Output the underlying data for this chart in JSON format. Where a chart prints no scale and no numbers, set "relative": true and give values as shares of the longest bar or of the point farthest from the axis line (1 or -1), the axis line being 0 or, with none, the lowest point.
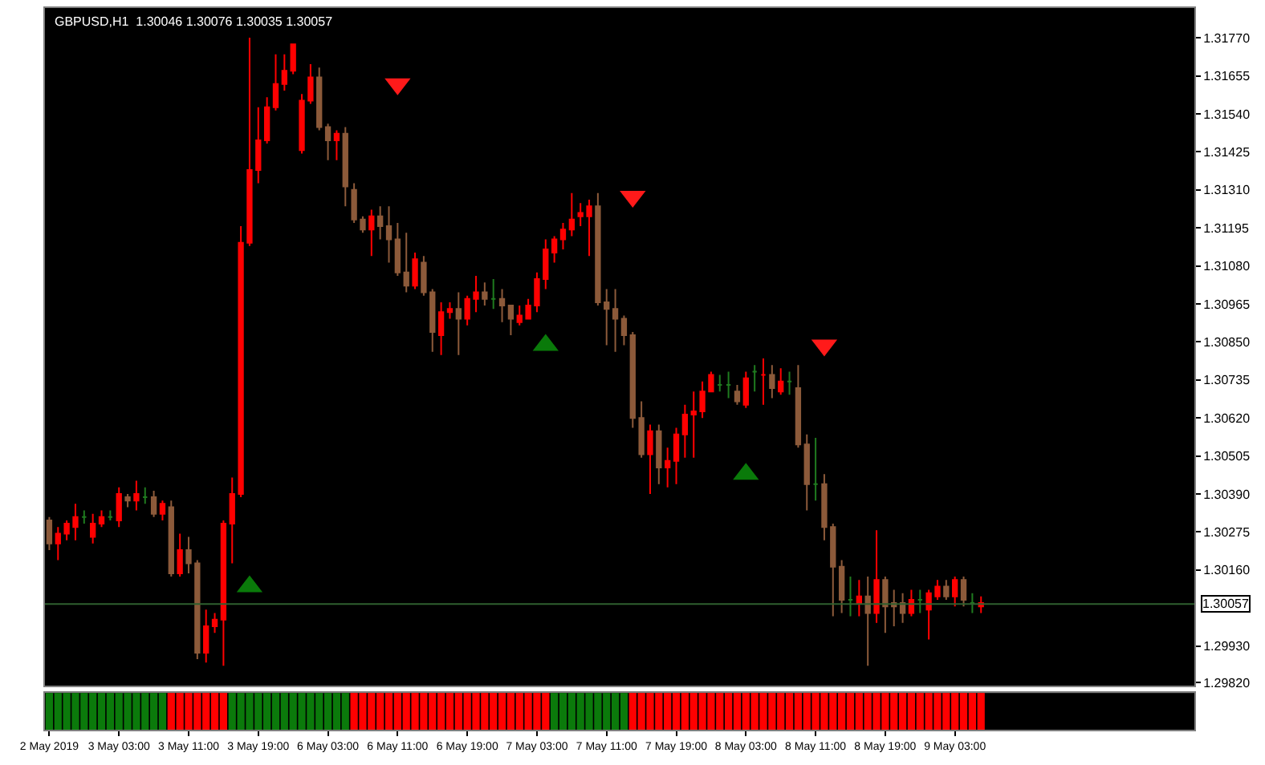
{
  "chart_data": [
    {
      "type": "candlestick",
      "title": "GBPUSD,H1  1.30046 1.30076 1.30035 1.30057",
      "categories": [
        null,
        null,
        null,
        null,
        null,
        null,
        null,
        null,
        null,
        null,
        null,
        null,
        null,
        null,
        null,
        null,
        null,
        null,
        null,
        null,
        null,
        null,
        null,
        null,
        null,
        null,
        null,
        null,
        null,
        null,
        null,
        null,
        null,
        null,
        null,
        null,
        null,
        null,
        null,
        null,
        null,
        null,
        null,
        null,
        null,
        null,
        null,
        null,
        null,
        null,
        null,
        null,
        null,
        null,
        null,
        null,
        null,
        null,
        null,
        null,
        null,
        null,
        null,
        null,
        null,
        null,
        null,
        null,
        null,
        null,
        null,
        null,
        null,
        null,
        null,
        null,
        null,
        null,
        null,
        null,
        null,
        null,
        null,
        null,
        null,
        null,
        null,
        null,
        null,
        null,
        null,
        null,
        null,
        null,
        null,
        null,
        null,
        null,
        null,
        null,
        null,
        null,
        null,
        null,
        null,
        null,
        null,
        null,
        null,
        null,
        null,
        null,
        null,
        null,
        null,
        null,
        null,
        null,
        null,
        null,
        null,
        null,
        null,
        null,
        null,
        null,
        null,
        null,
        null,
        null,
        null,
        null
      ],
      "ohlc": [
        [
          1.3031,
          1.3032,
          1.3022,
          1.3024
        ],
        [
          1.3024,
          1.3029,
          1.3019,
          1.3027
        ],
        [
          1.3027,
          1.3031,
          1.3025,
          1.303
        ],
        [
          1.3029,
          1.3036,
          1.3025,
          1.3032
        ],
        [
          1.3032,
          1.3034,
          1.303,
          1.3032
        ],
        [
          1.3026,
          1.3033,
          1.3024,
          1.303
        ],
        [
          1.303,
          1.3034,
          1.3029,
          1.3032
        ],
        [
          1.3032,
          1.3034,
          1.3031,
          1.3032
        ],
        [
          1.3031,
          1.3041,
          1.3029,
          1.3039
        ],
        [
          1.3038,
          1.3039,
          1.3035,
          1.3037
        ],
        [
          1.3037,
          1.3043,
          1.3034,
          1.3039
        ],
        [
          1.3038,
          1.3041,
          1.3036,
          1.3038
        ],
        [
          1.3038,
          1.304,
          1.3032,
          1.3033
        ],
        [
          1.3033,
          1.3037,
          1.3031,
          1.3036
        ],
        [
          1.3035,
          1.3037,
          1.3014,
          1.3015
        ],
        [
          1.3015,
          1.3027,
          1.3014,
          1.3022
        ],
        [
          1.3022,
          1.3026,
          1.3015,
          1.3018
        ],
        [
          1.3018,
          1.3019,
          1.2989,
          1.2991
        ],
        [
          1.2991,
          1.3004,
          1.2988,
          1.2999
        ],
        [
          1.2999,
          1.3003,
          1.2997,
          1.3001
        ],
        [
          1.3001,
          1.3031,
          1.2987,
          1.303
        ],
        [
          1.303,
          1.3044,
          1.3018,
          1.3039
        ],
        [
          1.3039,
          1.312,
          1.3038,
          1.3115
        ],
        [
          1.3115,
          1.3177,
          1.3114,
          1.3137
        ],
        [
          1.3137,
          1.3156,
          1.3133,
          1.3146
        ],
        [
          1.3146,
          1.3159,
          1.3145,
          1.3156
        ],
        [
          1.3156,
          1.3172,
          1.3155,
          1.3163
        ],
        [
          1.3163,
          1.3172,
          1.3161,
          1.3167
        ],
        [
          1.3167,
          1.3175,
          1.3166,
          1.3175
        ],
        [
          1.3143,
          1.316,
          1.3142,
          1.3158
        ],
        [
          1.3158,
          1.3169,
          1.3157,
          1.3165
        ],
        [
          1.3165,
          1.3168,
          1.3149,
          1.315
        ],
        [
          1.315,
          1.3151,
          1.314,
          1.3146
        ],
        [
          1.3146,
          1.3149,
          1.314,
          1.3148
        ],
        [
          1.3148,
          1.315,
          1.3126,
          1.3132
        ],
        [
          1.3131,
          1.3133,
          1.3121,
          1.3122
        ],
        [
          1.3122,
          1.3123,
          1.3118,
          1.3119
        ],
        [
          1.3119,
          1.3125,
          1.3111,
          1.3123
        ],
        [
          1.3123,
          1.3126,
          1.3116,
          1.312
        ],
        [
          1.312,
          1.3126,
          1.3109,
          1.3116
        ],
        [
          1.3116,
          1.3121,
          1.3105,
          1.3106
        ],
        [
          1.3106,
          1.3118,
          1.31,
          1.3102
        ],
        [
          1.3102,
          1.3112,
          1.3101,
          1.311
        ],
        [
          1.3109,
          1.3111,
          1.3099,
          1.31
        ],
        [
          1.31,
          1.3101,
          1.3082,
          1.3088
        ],
        [
          1.3087,
          1.3097,
          1.3081,
          1.3094
        ],
        [
          1.3094,
          1.3097,
          1.3092,
          1.3095
        ],
        [
          1.3095,
          1.31,
          1.3081,
          1.3092
        ],
        [
          1.3092,
          1.3099,
          1.309,
          1.3098
        ],
        [
          1.3098,
          1.3105,
          1.3094,
          1.31
        ],
        [
          1.31,
          1.3103,
          1.3096,
          1.3098
        ],
        [
          1.3098,
          1.3104,
          1.3095,
          1.3098
        ],
        [
          1.3098,
          1.3101,
          1.3091,
          1.3096
        ],
        [
          1.3096,
          1.3096,
          1.3087,
          1.3092
        ],
        [
          1.3091,
          1.3096,
          1.309,
          1.3093
        ],
        [
          1.3092,
          1.3098,
          1.3092,
          1.3096
        ],
        [
          1.3096,
          1.3106,
          1.3094,
          1.3104
        ],
        [
          1.3104,
          1.3116,
          1.3101,
          1.3113
        ],
        [
          1.3112,
          1.3117,
          1.3109,
          1.3116
        ],
        [
          1.3116,
          1.3121,
          1.3113,
          1.3119
        ],
        [
          1.3119,
          1.313,
          1.3117,
          1.3122
        ],
        [
          1.3123,
          1.3127,
          1.312,
          1.3124
        ],
        [
          1.3123,
          1.3128,
          1.3111,
          1.3126
        ],
        [
          1.3126,
          1.313,
          1.3096,
          1.3097
        ],
        [
          1.3097,
          1.3101,
          1.3084,
          1.3095
        ],
        [
          1.3095,
          1.3101,
          1.3082,
          1.3092
        ],
        [
          1.3092,
          1.3093,
          1.3084,
          1.3087
        ],
        [
          1.3087,
          1.3088,
          1.3059,
          1.3062
        ],
        [
          1.3062,
          1.3067,
          1.305,
          1.3051
        ],
        [
          1.3051,
          1.306,
          1.3039,
          1.3058
        ],
        [
          1.3058,
          1.306,
          1.3042,
          1.3047
        ],
        [
          1.3047,
          1.3053,
          1.3041,
          1.3049
        ],
        [
          1.3049,
          1.3059,
          1.3042,
          1.3057
        ],
        [
          1.3057,
          1.3066,
          1.305,
          1.3063
        ],
        [
          1.3063,
          1.307,
          1.305,
          1.3064
        ],
        [
          1.3064,
          1.3073,
          1.3062,
          1.307
        ],
        [
          1.307,
          1.3076,
          1.307,
          1.3075
        ],
        [
          1.3072,
          1.3075,
          1.307,
          1.3072
        ],
        [
          1.3072,
          1.3076,
          1.3068,
          1.3072
        ],
        [
          1.307,
          1.3072,
          1.3066,
          1.3067
        ],
        [
          1.3066,
          1.3076,
          1.3065,
          1.3074
        ],
        [
          1.3076,
          1.3078,
          1.307,
          1.3076
        ],
        [
          1.3075,
          1.308,
          1.3066,
          1.3075
        ],
        [
          1.3075,
          1.3078,
          1.3068,
          1.3071
        ],
        [
          1.307,
          1.3077,
          1.3069,
          1.3073
        ],
        [
          1.3073,
          1.3076,
          1.3069,
          1.3073
        ],
        [
          1.3071,
          1.3078,
          1.3053,
          1.3054
        ],
        [
          1.3054,
          1.3057,
          1.3034,
          1.3042
        ],
        [
          1.3042,
          1.3056,
          1.3037,
          1.3042
        ],
        [
          1.3042,
          1.3045,
          1.3025,
          1.3029
        ],
        [
          1.3029,
          1.303,
          1.3002,
          1.3017
        ],
        [
          1.3017,
          1.3019,
          1.3003,
          1.3007
        ],
        [
          1.3007,
          1.3014,
          1.3002,
          1.3007
        ],
        [
          1.3006,
          1.3013,
          1.3002,
          1.3008
        ],
        [
          1.3008,
          1.3014,
          1.2987,
          1.3003
        ],
        [
          1.3003,
          1.3028,
          1.3,
          1.3013
        ],
        [
          1.3013,
          1.3014,
          1.2997,
          1.3005
        ],
        [
          1.3006,
          1.301,
          1.2999,
          1.3005
        ],
        [
          1.3006,
          1.3009,
          1.3,
          1.3003
        ],
        [
          1.3003,
          1.301,
          1.3002,
          1.3007
        ],
        [
          1.3007,
          1.301,
          1.3003,
          1.3007
        ],
        [
          1.3004,
          1.301,
          1.2995,
          1.3009
        ],
        [
          1.3008,
          1.3013,
          1.3007,
          1.3011
        ],
        [
          1.3011,
          1.3013,
          1.3007,
          1.3008
        ],
        [
          1.3008,
          1.3014,
          1.3005,
          1.3013
        ],
        [
          1.3013,
          1.3014,
          1.3005,
          1.3007
        ],
        [
          1.3006,
          1.3009,
          1.3003,
          1.3006
        ],
        [
          1.3005,
          1.3008,
          1.3003,
          1.3006
        ],
        null,
        null,
        null,
        null,
        null,
        null,
        null,
        null,
        null,
        null,
        null,
        null,
        null,
        null,
        null,
        null,
        null,
        null,
        null,
        null,
        null,
        null,
        null,
        null
      ],
      "colors": [
        "#8c5a3a",
        "#ff0000",
        "#ff0000",
        "#ff0000",
        "#1f7a1f",
        "#ff0000",
        "#ff0000",
        "#1f7a1f",
        "#ff0000",
        "#8c5a3a",
        "#ff0000",
        "#1f7a1f",
        "#8c5a3a",
        "#ff0000",
        "#8c5a3a",
        "#ff0000",
        "#8c5a3a",
        "#8c5a3a",
        "#ff0000",
        "#ff0000",
        "#ff0000",
        "#ff0000",
        "#ff0000",
        "#ff0000",
        "#ff0000",
        "#ff0000",
        "#ff0000",
        "#ff0000",
        "#ff0000",
        "#ff0000",
        "#ff0000",
        "#8c5a3a",
        "#8c5a3a",
        "#ff0000",
        "#8c5a3a",
        "#8c5a3a",
        "#8c5a3a",
        "#ff0000",
        "#8c5a3a",
        "#8c5a3a",
        "#8c5a3a",
        "#8c5a3a",
        "#ff0000",
        "#8c5a3a",
        "#8c5a3a",
        "#ff0000",
        "#ff0000",
        "#8c5a3a",
        "#ff0000",
        "#ff0000",
        "#8c5a3a",
        "#1f7a1f",
        "#8c5a3a",
        "#8c5a3a",
        "#ff0000",
        "#ff0000",
        "#ff0000",
        "#ff0000",
        "#ff0000",
        "#ff0000",
        "#ff0000",
        "#ff0000",
        "#ff0000",
        "#8c5a3a",
        "#8c5a3a",
        "#8c5a3a",
        "#8c5a3a",
        "#8c5a3a",
        "#8c5a3a",
        "#ff0000",
        "#8c5a3a",
        "#ff0000",
        "#ff0000",
        "#ff0000",
        "#ff0000",
        "#ff0000",
        "#ff0000",
        "#1f7a1f",
        "#1f7a1f",
        "#8c5a3a",
        "#ff0000",
        "#1f7a1f",
        "#ff0000",
        "#8c5a3a",
        "#ff0000",
        "#1f7a1f",
        "#8c5a3a",
        "#8c5a3a",
        "#1f7a1f",
        "#8c5a3a",
        "#8c5a3a",
        "#8c5a3a",
        "#1f7a1f",
        "#ff0000",
        "#8c5a3a",
        "#ff0000",
        "#8c5a3a",
        "#8c5a3a",
        "#8c5a3a",
        "#ff0000",
        "#1f7a1f",
        "#ff0000",
        "#ff0000",
        "#8c5a3a",
        "#ff0000",
        "#8c5a3a",
        "#1f7a1f",
        "#ff0000",
        null,
        null,
        null,
        null,
        null,
        null,
        null,
        null,
        null,
        null,
        null,
        null,
        null,
        null,
        null,
        null,
        null,
        null,
        null,
        null,
        null,
        null,
        null,
        null
      ],
      "series": [
        {
          "type": "scatter",
          "color": "#0a7a0a",
          "values": [
            null,
            null,
            null,
            null,
            null,
            null,
            null,
            null,
            null,
            null,
            null,
            null,
            null,
            null,
            null,
            null,
            null,
            null,
            null,
            null,
            null,
            null,
            null,
            1.3011,
            null,
            null,
            null,
            null,
            null,
            null,
            null,
            null,
            null,
            null,
            null,
            null,
            null,
            null,
            null,
            null,
            null,
            null,
            null,
            null,
            null,
            null,
            null,
            null,
            null,
            null,
            null,
            null,
            null,
            null,
            null,
            null,
            null,
            1.3084,
            null,
            null,
            null,
            null,
            null,
            null,
            null,
            null,
            null,
            null,
            null,
            null,
            null,
            null,
            null,
            null,
            null,
            null,
            null,
            null,
            null,
            null,
            1.3045,
            null,
            null,
            null,
            null,
            null,
            null,
            null,
            null,
            null,
            null,
            null,
            null,
            null,
            null,
            null,
            null,
            null,
            null,
            null,
            null,
            null,
            null,
            null,
            null,
            null,
            null,
            null,
            null,
            null,
            null,
            null,
            null,
            null,
            null,
            null,
            null,
            null,
            null,
            null,
            null,
            null,
            null,
            null,
            null,
            null,
            null,
            null,
            null,
            null,
            null,
            null
          ]
        },
        {
          "type": "scatter",
          "color": "#ff1a1a",
          "values": [
            null,
            null,
            null,
            null,
            null,
            null,
            null,
            null,
            null,
            null,
            null,
            null,
            null,
            null,
            null,
            null,
            null,
            null,
            null,
            null,
            null,
            null,
            null,
            null,
            null,
            null,
            null,
            null,
            null,
            null,
            null,
            null,
            null,
            null,
            null,
            null,
            null,
            null,
            null,
            null,
            1.3163,
            null,
            null,
            null,
            null,
            null,
            null,
            null,
            null,
            null,
            null,
            null,
            null,
            null,
            null,
            null,
            null,
            null,
            null,
            null,
            null,
            null,
            null,
            null,
            null,
            null,
            null,
            1.3129,
            null,
            null,
            null,
            null,
            null,
            null,
            null,
            null,
            null,
            null,
            null,
            null,
            null,
            null,
            null,
            null,
            null,
            null,
            null,
            null,
            null,
            1.3084,
            null,
            null,
            null,
            null,
            null,
            null,
            null,
            null,
            null,
            null,
            null,
            null,
            null,
            null,
            null,
            null,
            null,
            null,
            null,
            null,
            null,
            null,
            null,
            null,
            null,
            null,
            null,
            null,
            null,
            null,
            null,
            null,
            null,
            null,
            null,
            null,
            null,
            null,
            null,
            null,
            null,
            null
          ]
        }
      ],
      "ylim": [
        1.2981,
        1.3186
      ],
      "yticks": [
        {
          "value": 1.3177,
          "label": "1.31770"
        },
        {
          "value": 1.31655,
          "label": "1.31655"
        },
        {
          "value": 1.3154,
          "label": "1.31540"
        },
        {
          "value": 1.31425,
          "label": "1.31425"
        },
        {
          "value": 1.3131,
          "label": "1.31310"
        },
        {
          "value": 1.31195,
          "label": "1.31195"
        },
        {
          "value": 1.3108,
          "label": "1.31080"
        },
        {
          "value": 1.30965,
          "label": "1.30965"
        },
        {
          "value": 1.3085,
          "label": "1.30850"
        },
        {
          "value": 1.30735,
          "label": "1.30735"
        },
        {
          "value": 1.3062,
          "label": "1.30620"
        },
        {
          "value": 1.30505,
          "label": "1.30505"
        },
        {
          "value": 1.3039,
          "label": "1.30390"
        },
        {
          "value": 1.30275,
          "label": "1.30275"
        },
        {
          "value": 1.3016,
          "label": "1.30160"
        },
        {
          "value": 1.2993,
          "label": "1.29930"
        },
        {
          "value": 1.2982,
          "label": "1.29820"
        }
      ],
      "ref_lines": [
        {
          "axis": "y",
          "value": 1.30057,
          "label": "1.30057",
          "color": "#2f5f2f"
        }
      ],
      "tick_labels": "y",
      "grid": false
    },
    {
      "type": "bar",
      "relative": true,
      "tick_labels": "x",
      "categories": [
        "2 May 2019",
        null,
        null,
        null,
        null,
        null,
        null,
        null,
        "3 May 03:00",
        null,
        null,
        null,
        null,
        null,
        null,
        null,
        "3 May 11:00",
        null,
        null,
        null,
        null,
        null,
        null,
        null,
        "3 May 19:00",
        null,
        null,
        null,
        null,
        null,
        null,
        null,
        "6 May 03:00",
        null,
        null,
        null,
        null,
        null,
        null,
        null,
        "6 May 11:00",
        null,
        null,
        null,
        null,
        null,
        null,
        null,
        "6 May 19:00",
        null,
        null,
        null,
        null,
        null,
        null,
        null,
        "7 May 03:00",
        null,
        null,
        null,
        null,
        null,
        null,
        null,
        "7 May 11:00",
        null,
        null,
        null,
        null,
        null,
        null,
        null,
        "7 May 19:00",
        null,
        null,
        null,
        null,
        null,
        null,
        null,
        "8 May 03:00",
        null,
        null,
        null,
        null,
        null,
        null,
        null,
        "8 May 11:00",
        null,
        null,
        null,
        null,
        null,
        null,
        null,
        "8 May 19:00",
        null,
        null,
        null,
        null,
        null,
        null,
        null,
        "9 May 03:00",
        null,
        null,
        null,
        null,
        null,
        null,
        null,
        null,
        null,
        null,
        null,
        null,
        null,
        null,
        null,
        null,
        null,
        null,
        null,
        null,
        null,
        null,
        null,
        null,
        null,
        null,
        null
      ],
      "values": [
        1,
        1,
        1,
        1,
        1,
        1,
        1,
        1,
        1,
        1,
        1,
        1,
        1,
        1,
        1,
        1,
        1,
        1,
        1,
        1,
        1,
        1,
        1,
        1,
        1,
        1,
        1,
        1,
        1,
        1,
        1,
        1,
        1,
        1,
        1,
        1,
        1,
        1,
        1,
        1,
        1,
        1,
        1,
        1,
        1,
        1,
        1,
        1,
        1,
        1,
        1,
        1,
        1,
        1,
        1,
        1,
        1,
        1,
        1,
        1,
        1,
        1,
        1,
        1,
        1,
        1,
        1,
        1,
        1,
        1,
        1,
        1,
        1,
        1,
        1,
        1,
        1,
        1,
        1,
        1,
        1,
        1,
        1,
        1,
        1,
        1,
        1,
        1,
        1,
        1,
        1,
        1,
        1,
        1,
        1,
        1,
        1,
        1,
        1,
        1,
        1,
        1,
        1,
        1,
        1,
        1,
        1,
        1,
        null,
        null,
        null,
        null,
        null,
        null,
        null,
        null,
        null,
        null,
        null,
        null,
        null,
        null,
        null,
        null,
        null,
        null,
        null,
        null,
        null,
        null,
        null,
        null
      ],
      "colors": [
        "#0b7a0b",
        "#0b7a0b",
        "#0b7a0b",
        "#0b7a0b",
        "#0b7a0b",
        "#0b7a0b",
        "#0b7a0b",
        "#0b7a0b",
        "#0b7a0b",
        "#0b7a0b",
        "#0b7a0b",
        "#0b7a0b",
        "#0b7a0b",
        "#0b7a0b",
        "#ff0000",
        "#ff0000",
        "#ff0000",
        "#ff0000",
        "#ff0000",
        "#ff0000",
        "#ff0000",
        "#0b7a0b",
        "#0b7a0b",
        "#0b7a0b",
        "#0b7a0b",
        "#0b7a0b",
        "#0b7a0b",
        "#0b7a0b",
        "#0b7a0b",
        "#0b7a0b",
        "#0b7a0b",
        "#0b7a0b",
        "#0b7a0b",
        "#0b7a0b",
        "#0b7a0b",
        "#ff0000",
        "#ff0000",
        "#ff0000",
        "#ff0000",
        "#ff0000",
        "#ff0000",
        "#ff0000",
        "#ff0000",
        "#ff0000",
        "#ff0000",
        "#ff0000",
        "#ff0000",
        "#ff0000",
        "#ff0000",
        "#ff0000",
        "#ff0000",
        "#ff0000",
        "#ff0000",
        "#ff0000",
        "#ff0000",
        "#ff0000",
        "#ff0000",
        "#ff0000",
        "#0b7a0b",
        "#0b7a0b",
        "#0b7a0b",
        "#0b7a0b",
        "#0b7a0b",
        "#0b7a0b",
        "#0b7a0b",
        "#0b7a0b",
        "#0b7a0b",
        "#ff0000",
        "#ff0000",
        "#ff0000",
        "#ff0000",
        "#ff0000",
        "#ff0000",
        "#ff0000",
        "#ff0000",
        "#ff0000",
        "#ff0000",
        "#ff0000",
        "#ff0000",
        "#ff0000",
        "#ff0000",
        "#ff0000",
        "#ff0000",
        "#ff0000",
        "#ff0000",
        "#ff0000",
        "#ff0000",
        "#ff0000",
        "#ff0000",
        "#ff0000",
        "#ff0000",
        "#ff0000",
        "#ff0000",
        "#ff0000",
        "#ff0000",
        "#ff0000",
        "#ff0000",
        "#ff0000",
        "#ff0000",
        "#ff0000",
        "#ff0000",
        "#ff0000",
        "#ff0000",
        "#ff0000",
        "#ff0000",
        "#ff0000",
        "#ff0000",
        "#ff0000",
        null,
        null,
        null,
        null,
        null,
        null,
        null,
        null,
        null,
        null,
        null,
        null,
        null,
        null,
        null,
        null,
        null,
        null,
        null,
        null,
        null,
        null,
        null,
        null
      ]
    }
  ]
}
